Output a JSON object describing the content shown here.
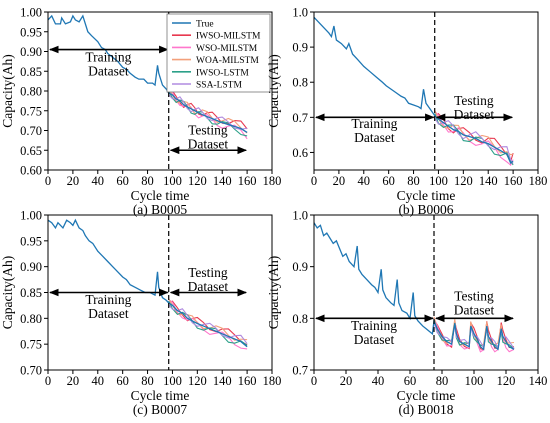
{
  "chart_data": [
    {
      "type": "line",
      "caption": "(a) B0005",
      "xlabel": "Cycle time",
      "ylabel": "Capacity(Ah)",
      "xlim": [
        0,
        180
      ],
      "ylim": [
        0.6,
        1.0
      ],
      "xticks": [
        "0",
        "20",
        "40",
        "60",
        "80",
        "100",
        "120",
        "140",
        "160",
        "180"
      ],
      "yticks": [
        "0.60",
        "0.65",
        "0.70",
        "0.75",
        "0.80",
        "0.85",
        "0.90",
        "0.95",
        "1.00"
      ],
      "split": 97,
      "ann_train": {
        "label": [
          "Training",
          "Dataset"
        ],
        "y": 0.905,
        "x0": 0,
        "x1": 97,
        "label_y": 0.875
      },
      "ann_test": {
        "label": [
          "Testing",
          "Dataset"
        ],
        "y": 0.65,
        "x0": 97,
        "x1": 160,
        "label_y": 0.69
      },
      "legend": true,
      "true_series": [
        [
          0,
          0.98
        ],
        [
          3,
          0.99
        ],
        [
          6,
          0.97
        ],
        [
          10,
          0.97
        ],
        [
          11,
          0.985
        ],
        [
          14,
          0.97
        ],
        [
          18,
          0.975
        ],
        [
          20,
          0.99
        ],
        [
          22,
          0.98
        ],
        [
          25,
          0.975
        ],
        [
          28,
          0.99
        ],
        [
          32,
          0.95
        ],
        [
          35,
          0.94
        ],
        [
          40,
          0.925
        ],
        [
          43,
          0.91
        ],
        [
          46,
          0.905
        ],
        [
          48,
          0.895
        ],
        [
          52,
          0.885
        ],
        [
          56,
          0.875
        ],
        [
          60,
          0.86
        ],
        [
          63,
          0.855
        ],
        [
          66,
          0.845
        ],
        [
          70,
          0.835
        ],
        [
          73,
          0.83
        ],
        [
          77,
          0.83
        ],
        [
          80,
          0.82
        ],
        [
          84,
          0.82
        ],
        [
          86,
          0.815
        ],
        [
          88,
          0.865
        ],
        [
          89,
          0.845
        ],
        [
          92,
          0.815
        ],
        [
          95,
          0.805
        ],
        [
          97,
          0.795
        ],
        [
          100,
          0.79
        ],
        [
          103,
          0.78
        ],
        [
          106,
          0.775
        ],
        [
          109,
          0.765
        ],
        [
          112,
          0.76
        ],
        [
          115,
          0.755
        ],
        [
          118,
          0.75
        ],
        [
          121,
          0.745
        ],
        [
          124,
          0.74
        ],
        [
          128,
          0.735
        ],
        [
          132,
          0.73
        ],
        [
          136,
          0.725
        ],
        [
          140,
          0.72
        ],
        [
          145,
          0.715
        ],
        [
          150,
          0.71
        ],
        [
          155,
          0.705
        ],
        [
          160,
          0.695
        ]
      ],
      "wiggle": [
        0.018,
        0.01
      ]
    },
    {
      "type": "line",
      "caption": "(b) B0006",
      "xlabel": "Cycle time",
      "ylabel": "Capacity(Ah)",
      "xlim": [
        0,
        180
      ],
      "ylim": [
        0.55,
        1.0
      ],
      "xticks": [
        "0",
        "20",
        "40",
        "60",
        "80",
        "100",
        "120",
        "140",
        "160",
        "180"
      ],
      "yticks": [
        "0.6",
        "0.7",
        "0.8",
        "0.9",
        "1.0"
      ],
      "split": 97,
      "ann_train": {
        "label": [
          "Training",
          "Dataset"
        ],
        "y": 0.7,
        "x0": 0,
        "x1": 97,
        "label_y": 0.67
      },
      "ann_test": {
        "label": [
          "Testing",
          "Dataset"
        ],
        "y": 0.7,
        "x0": 97,
        "x1": 160,
        "label_y": 0.735
      },
      "legend": false,
      "true_series": [
        [
          0,
          0.985
        ],
        [
          4,
          0.97
        ],
        [
          8,
          0.955
        ],
        [
          12,
          0.94
        ],
        [
          14,
          0.93
        ],
        [
          16,
          0.96
        ],
        [
          18,
          0.92
        ],
        [
          22,
          0.91
        ],
        [
          26,
          0.895
        ],
        [
          28,
          0.91
        ],
        [
          31,
          0.88
        ],
        [
          35,
          0.865
        ],
        [
          40,
          0.845
        ],
        [
          45,
          0.83
        ],
        [
          50,
          0.815
        ],
        [
          55,
          0.8
        ],
        [
          58,
          0.79
        ],
        [
          62,
          0.78
        ],
        [
          66,
          0.77
        ],
        [
          70,
          0.76
        ],
        [
          73,
          0.755
        ],
        [
          76,
          0.74
        ],
        [
          80,
          0.735
        ],
        [
          84,
          0.73
        ],
        [
          86,
          0.725
        ],
        [
          88,
          0.78
        ],
        [
          90,
          0.74
        ],
        [
          94,
          0.72
        ],
        [
          97,
          0.705
        ],
        [
          100,
          0.695
        ],
        [
          104,
          0.685
        ],
        [
          108,
          0.675
        ],
        [
          112,
          0.665
        ],
        [
          116,
          0.66
        ],
        [
          120,
          0.65
        ],
        [
          125,
          0.645
        ],
        [
          130,
          0.64
        ],
        [
          135,
          0.63
        ],
        [
          140,
          0.625
        ],
        [
          145,
          0.615
        ],
        [
          150,
          0.605
        ],
        [
          155,
          0.595
        ],
        [
          158,
          0.57
        ],
        [
          160,
          0.575
        ]
      ],
      "wiggle": [
        0.025,
        0.015
      ]
    },
    {
      "type": "line",
      "caption": "(c) B0007",
      "xlabel": "Cycle time",
      "ylabel": "Capacity(Ah)",
      "xlim": [
        0,
        180
      ],
      "ylim": [
        0.7,
        1.0
      ],
      "xticks": [
        "0",
        "20",
        "40",
        "60",
        "80",
        "100",
        "120",
        "140",
        "160",
        "180"
      ],
      "yticks": [
        "0.70",
        "0.75",
        "0.80",
        "0.85",
        "0.90",
        "0.95",
        "1.00"
      ],
      "split": 97,
      "ann_train": {
        "label": [
          "Training",
          "Dataset"
        ],
        "y": 0.85,
        "x0": 0,
        "x1": 97,
        "label_y": 0.828
      },
      "ann_test": {
        "label": [
          "Testing",
          "Dataset"
        ],
        "y": 0.85,
        "x0": 97,
        "x1": 160,
        "label_y": 0.88
      },
      "legend": false,
      "true_series": [
        [
          0,
          0.99
        ],
        [
          3,
          0.985
        ],
        [
          6,
          0.975
        ],
        [
          8,
          0.985
        ],
        [
          10,
          0.98
        ],
        [
          12,
          0.975
        ],
        [
          15,
          0.99
        ],
        [
          18,
          0.985
        ],
        [
          20,
          0.98
        ],
        [
          22,
          0.99
        ],
        [
          25,
          0.975
        ],
        [
          28,
          0.97
        ],
        [
          30,
          0.96
        ],
        [
          33,
          0.95
        ],
        [
          36,
          0.945
        ],
        [
          40,
          0.93
        ],
        [
          44,
          0.92
        ],
        [
          48,
          0.91
        ],
        [
          52,
          0.9
        ],
        [
          56,
          0.89
        ],
        [
          60,
          0.88
        ],
        [
          63,
          0.875
        ],
        [
          66,
          0.865
        ],
        [
          70,
          0.86
        ],
        [
          74,
          0.855
        ],
        [
          78,
          0.85
        ],
        [
          82,
          0.85
        ],
        [
          86,
          0.845
        ],
        [
          88,
          0.89
        ],
        [
          89,
          0.86
        ],
        [
          92,
          0.84
        ],
        [
          95,
          0.835
        ],
        [
          97,
          0.83
        ],
        [
          100,
          0.825
        ],
        [
          104,
          0.815
        ],
        [
          108,
          0.81
        ],
        [
          112,
          0.8
        ],
        [
          116,
          0.795
        ],
        [
          120,
          0.79
        ],
        [
          125,
          0.785
        ],
        [
          130,
          0.78
        ],
        [
          135,
          0.775
        ],
        [
          140,
          0.77
        ],
        [
          145,
          0.765
        ],
        [
          150,
          0.76
        ],
        [
          155,
          0.755
        ],
        [
          160,
          0.745
        ]
      ],
      "wiggle": [
        0.015,
        0.008
      ]
    },
    {
      "type": "line",
      "caption": "(d) B0018",
      "xlabel": "Cycle time",
      "ylabel": "Capacity(Ah)",
      "xlim": [
        0,
        140
      ],
      "ylim": [
        0.7,
        1.0
      ],
      "xticks": [
        "0",
        "20",
        "40",
        "60",
        "80",
        "100",
        "120",
        "140"
      ],
      "yticks": [
        "0.7",
        "0.8",
        "0.9",
        "1.0"
      ],
      "split": 75,
      "ann_train": {
        "label": [
          "Training",
          "Dataset"
        ],
        "y": 0.8,
        "x0": 0,
        "x1": 75,
        "label_y": 0.777
      },
      "ann_test": {
        "label": [
          "Testing",
          "Dataset"
        ],
        "y": 0.8,
        "x0": 75,
        "x1": 125,
        "label_y": 0.835
      },
      "legend": false,
      "true_series": [
        [
          0,
          0.985
        ],
        [
          2,
          0.975
        ],
        [
          4,
          0.98
        ],
        [
          6,
          0.96
        ],
        [
          8,
          0.965
        ],
        [
          10,
          0.955
        ],
        [
          12,
          0.945
        ],
        [
          14,
          0.95
        ],
        [
          16,
          0.935
        ],
        [
          18,
          0.92
        ],
        [
          20,
          0.925
        ],
        [
          22,
          0.91
        ],
        [
          25,
          0.9
        ],
        [
          27,
          0.94
        ],
        [
          28,
          0.895
        ],
        [
          30,
          0.885
        ],
        [
          33,
          0.875
        ],
        [
          36,
          0.865
        ],
        [
          38,
          0.86
        ],
        [
          40,
          0.85
        ],
        [
          42,
          0.895
        ],
        [
          43,
          0.855
        ],
        [
          45,
          0.84
        ],
        [
          48,
          0.83
        ],
        [
          50,
          0.825
        ],
        [
          52,
          0.875
        ],
        [
          53,
          0.83
        ],
        [
          55,
          0.815
        ],
        [
          58,
          0.81
        ],
        [
          60,
          0.8
        ],
        [
          62,
          0.85
        ],
        [
          63,
          0.805
        ],
        [
          65,
          0.795
        ],
        [
          68,
          0.785
        ],
        [
          70,
          0.78
        ],
        [
          72,
          0.775
        ],
        [
          74,
          0.77
        ],
        [
          75,
          0.795
        ],
        [
          77,
          0.78
        ],
        [
          80,
          0.765
        ],
        [
          83,
          0.755
        ],
        [
          86,
          0.75
        ],
        [
          88,
          0.79
        ],
        [
          89,
          0.77
        ],
        [
          91,
          0.755
        ],
        [
          94,
          0.75
        ],
        [
          97,
          0.745
        ],
        [
          98,
          0.785
        ],
        [
          100,
          0.77
        ],
        [
          102,
          0.76
        ],
        [
          104,
          0.745
        ],
        [
          106,
          0.74
        ],
        [
          108,
          0.785
        ],
        [
          109,
          0.765
        ],
        [
          111,
          0.755
        ],
        [
          113,
          0.745
        ],
        [
          115,
          0.74
        ],
        [
          117,
          0.78
        ],
        [
          118,
          0.765
        ],
        [
          120,
          0.755
        ],
        [
          122,
          0.745
        ],
        [
          125,
          0.74
        ]
      ],
      "wiggle": [
        0.012,
        0.008
      ]
    }
  ],
  "legend_entries": [
    {
      "name": "True",
      "color": "#1f77b4"
    },
    {
      "name": "IWSO-MILSTM",
      "color": "#e8384f"
    },
    {
      "name": "WSO-MILSTM",
      "color": "#ff77cc"
    },
    {
      "name": "WOA-MILSTM",
      "color": "#f3a07b"
    },
    {
      "name": "IWSO-LSTM",
      "color": "#2ca089"
    },
    {
      "name": "SSA-LSTM",
      "color": "#b08be0"
    }
  ]
}
